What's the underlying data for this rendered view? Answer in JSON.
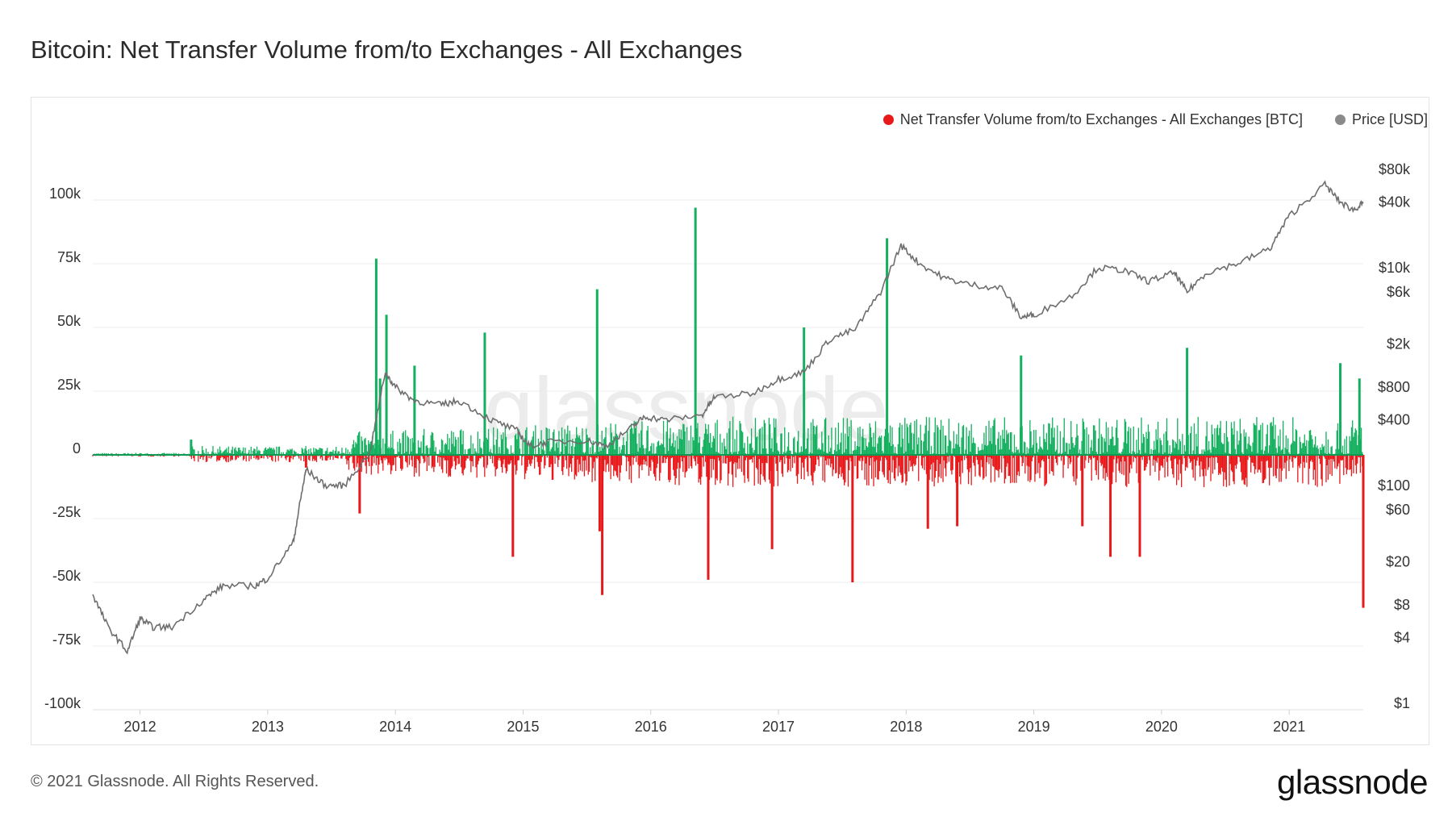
{
  "title": "Bitcoin: Net Transfer Volume from/to Exchanges - All Exchanges",
  "footer": "© 2021 Glassnode. All Rights Reserved.",
  "brand": "glassnode",
  "watermark": "glassnode",
  "legend": [
    {
      "label": "Net Transfer Volume from/to Exchanges - All Exchanges [BTC]",
      "color": "#e8191b"
    },
    {
      "label": "Price [USD]",
      "color": "#8a8a8a"
    }
  ],
  "chart_data": {
    "type": "bar",
    "title": "Bitcoin: Net Transfer Volume from/to Exchanges - All Exchanges",
    "positive_color": "#14b05f",
    "negative_color": "#e8191b",
    "price_color": "#6e6e6e",
    "x_ticks": [
      "2012",
      "2013",
      "2014",
      "2015",
      "2016",
      "2017",
      "2018",
      "2019",
      "2020",
      "2021"
    ],
    "x_range": [
      2011.63,
      2021.58
    ],
    "left_axis": {
      "ticks": [
        "100k",
        "75k",
        "50k",
        "25k",
        "0",
        "-25k",
        "-50k",
        "-75k",
        "-100k"
      ],
      "tick_values": [
        100000,
        75000,
        50000,
        25000,
        0,
        -25000,
        -50000,
        -75000,
        -100000
      ],
      "ylim": [
        -100000,
        100000
      ]
    },
    "right_axis": {
      "scale": "log",
      "ticks": [
        "$80k",
        "$40k",
        "$10k",
        "$6k",
        "$2k",
        "$800",
        "$400",
        "$100",
        "$60",
        "$20",
        "$8",
        "$4",
        "$1"
      ],
      "tick_values": [
        80000,
        40000,
        10000,
        6000,
        2000,
        800,
        400,
        100,
        60,
        20,
        8,
        4,
        1
      ],
      "ylim": [
        1,
        80000
      ]
    },
    "net_transfer_series": {
      "name": "Net Transfer Volume from/to Exchanges - All Exchanges [BTC]",
      "x": [
        2012.4,
        2013.3,
        2013.72,
        2013.85,
        2013.88,
        2013.93,
        2014.15,
        2014.7,
        2014.92,
        2015.58,
        2015.6,
        2015.62,
        2016.35,
        2016.45,
        2016.95,
        2017.2,
        2017.58,
        2017.85,
        2018.17,
        2018.4,
        2018.9,
        2019.38,
        2019.6,
        2019.83,
        2020.2,
        2021.4,
        2021.55,
        2021.58
      ],
      "y": [
        6000,
        -5000,
        -23000,
        77000,
        30000,
        55000,
        35000,
        48000,
        -40000,
        65000,
        -30000,
        -55000,
        97000,
        -49000,
        -37000,
        50000,
        -50000,
        85000,
        -29000,
        -28000,
        39000,
        -28000,
        -40000,
        -40000,
        42000,
        36000,
        30000,
        -60000
      ]
    },
    "price_series": {
      "name": "Price [USD]",
      "x": [
        2011.63,
        2011.75,
        2011.9,
        2012.0,
        2012.1,
        2012.25,
        2012.5,
        2012.65,
        2012.9,
        2013.0,
        2013.2,
        2013.27,
        2013.3,
        2013.45,
        2013.6,
        2013.8,
        2013.92,
        2014.0,
        2014.15,
        2014.35,
        2014.5,
        2014.75,
        2014.95,
        2015.05,
        2015.2,
        2015.5,
        2015.65,
        2015.85,
        2015.95,
        2016.1,
        2016.4,
        2016.5,
        2016.8,
        2017.0,
        2017.2,
        2017.4,
        2017.6,
        2017.8,
        2017.96,
        2018.1,
        2018.3,
        2018.5,
        2018.75,
        2018.9,
        2019.0,
        2019.3,
        2019.5,
        2019.7,
        2019.9,
        2020.1,
        2020.2,
        2020.35,
        2020.6,
        2020.85,
        2021.0,
        2021.28,
        2021.4,
        2021.5,
        2021.58
      ],
      "y": [
        10,
        5,
        3,
        6,
        5,
        5,
        9,
        12,
        12,
        14,
        30,
        90,
        140,
        100,
        100,
        200,
        1100,
        800,
        600,
        550,
        600,
        400,
        320,
        230,
        250,
        260,
        230,
        340,
        430,
        400,
        440,
        650,
        700,
        950,
        1100,
        2200,
        2700,
        6000,
        16000,
        11000,
        8000,
        7000,
        6500,
        3500,
        3700,
        5500,
        10000,
        9500,
        7500,
        9000,
        6000,
        9000,
        11000,
        15000,
        30000,
        58000,
        40000,
        34000,
        39000
      ]
    }
  }
}
